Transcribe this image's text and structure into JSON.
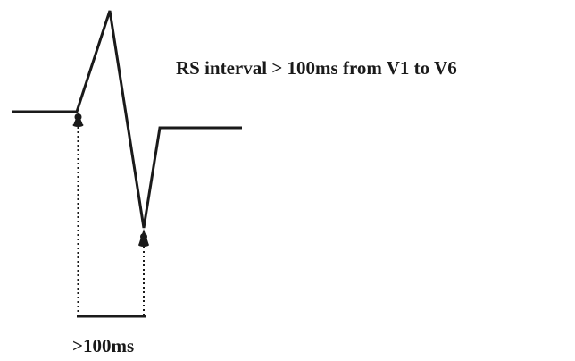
{
  "diagram": {
    "title": "RS interval > 100ms from V1 to V6",
    "interval_label": ">100ms"
  },
  "colors": {
    "stroke": "#1a1a1a",
    "background": "#ffffff"
  }
}
